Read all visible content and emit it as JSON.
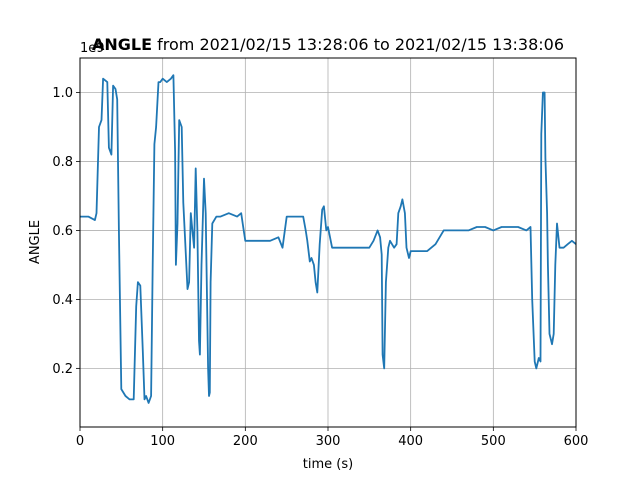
{
  "chart_data": {
    "type": "line",
    "title_bold": "ANGLE",
    "title_rest": " from 2021/02/15 13:28:06 to 2021/02/15 13:38:06",
    "xlabel": "time (s)",
    "ylabel": "ANGLE",
    "offset_text": "1e9",
    "xlim": [
      0,
      600
    ],
    "ylim": [
      0.03,
      1.1
    ],
    "x_ticks": [
      0,
      100,
      200,
      300,
      400,
      500,
      600
    ],
    "x_tick_labels": [
      "0",
      "100",
      "200",
      "300",
      "400",
      "500",
      "600"
    ],
    "y_ticks": [
      0.2,
      0.4,
      0.6,
      0.8,
      1.0
    ],
    "y_tick_labels": [
      "0.2",
      "0.4",
      "0.6",
      "0.8",
      "1.0"
    ],
    "grid": true,
    "line_color": "#1f77b4",
    "series": [
      {
        "x": [
          0,
          10,
          18,
          20,
          23,
          26,
          28,
          33,
          35,
          38,
          40,
          43,
          45,
          47,
          50,
          55,
          60,
          65,
          68,
          70,
          73,
          76,
          78,
          80,
          83,
          86,
          88,
          90,
          92,
          95,
          97,
          100,
          105,
          110,
          113,
          115,
          116,
          118,
          120,
          123,
          125,
          127,
          130,
          132,
          134,
          136,
          138,
          140,
          142,
          144,
          145,
          147,
          150,
          152,
          155,
          156,
          157,
          158,
          160,
          165,
          170,
          180,
          190,
          195,
          198,
          200,
          210,
          220,
          230,
          240,
          245,
          250,
          260,
          270,
          273,
          275,
          278,
          280,
          283,
          285,
          287,
          290,
          293,
          295,
          298,
          300,
          305,
          310,
          320,
          330,
          340,
          350,
          355,
          360,
          363,
          365,
          366,
          368,
          370,
          373,
          375,
          380,
          383,
          385,
          388,
          390,
          393,
          395,
          398,
          400,
          405,
          410,
          420,
          430,
          435,
          440,
          450,
          460,
          470,
          480,
          490,
          500,
          510,
          520,
          530,
          540,
          545,
          547,
          550,
          552,
          555,
          557,
          558,
          560,
          562,
          563,
          565,
          566,
          568,
          570,
          571,
          573,
          575,
          577,
          580,
          585,
          590,
          595,
          600
        ],
        "y": [
          0.64,
          0.64,
          0.63,
          0.65,
          0.9,
          0.92,
          1.04,
          1.03,
          0.84,
          0.82,
          1.02,
          1.01,
          0.98,
          0.6,
          0.14,
          0.12,
          0.11,
          0.11,
          0.38,
          0.45,
          0.44,
          0.25,
          0.11,
          0.12,
          0.1,
          0.12,
          0.5,
          0.85,
          0.9,
          1.03,
          1.03,
          1.04,
          1.03,
          1.04,
          1.05,
          0.83,
          0.5,
          0.62,
          0.92,
          0.9,
          0.68,
          0.58,
          0.43,
          0.45,
          0.65,
          0.6,
          0.55,
          0.78,
          0.6,
          0.28,
          0.24,
          0.5,
          0.75,
          0.65,
          0.2,
          0.12,
          0.13,
          0.45,
          0.62,
          0.64,
          0.64,
          0.65,
          0.64,
          0.65,
          0.6,
          0.57,
          0.57,
          0.57,
          0.57,
          0.58,
          0.55,
          0.64,
          0.64,
          0.64,
          0.6,
          0.57,
          0.51,
          0.52,
          0.5,
          0.45,
          0.42,
          0.56,
          0.66,
          0.67,
          0.6,
          0.61,
          0.55,
          0.55,
          0.55,
          0.55,
          0.55,
          0.55,
          0.57,
          0.6,
          0.58,
          0.53,
          0.24,
          0.2,
          0.45,
          0.55,
          0.57,
          0.55,
          0.56,
          0.65,
          0.67,
          0.69,
          0.65,
          0.55,
          0.52,
          0.54,
          0.54,
          0.54,
          0.54,
          0.56,
          0.58,
          0.6,
          0.6,
          0.6,
          0.6,
          0.61,
          0.61,
          0.6,
          0.61,
          0.61,
          0.61,
          0.6,
          0.61,
          0.4,
          0.22,
          0.2,
          0.23,
          0.22,
          0.88,
          1.0,
          1.0,
          0.81,
          0.65,
          0.5,
          0.3,
          0.28,
          0.27,
          0.3,
          0.5,
          0.62,
          0.55,
          0.55,
          0.56,
          0.57,
          0.56
        ]
      }
    ]
  }
}
